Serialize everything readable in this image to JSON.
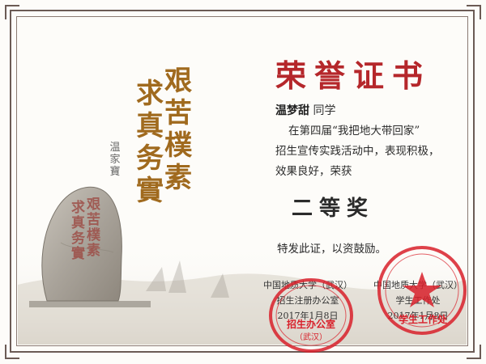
{
  "certificate": {
    "title": "荣誉证书",
    "recipient_name": "温梦甜",
    "recipient_suffix": "同学",
    "body_lines": [
      "在第四届“我把地大带回家”",
      "招生宣传实践活动中，表现积极，",
      "效果良好，荣获"
    ],
    "award": "二等奖",
    "closing": "特发此证，以资鼓励。"
  },
  "motto": {
    "column_right": "艰苦樸素",
    "column_left": "求真务實",
    "signature": "温家寶"
  },
  "stone_inscription": {
    "column_right": "艰苦樸素",
    "column_left": "求真务實"
  },
  "issuers": [
    {
      "org": "中国地质大学（武汉）",
      "dept": "招生注册办公室",
      "date": "2017年1月8日"
    },
    {
      "org": "中国地质大学（武汉）",
      "dept": "学生工作处",
      "date": "2017年1月8日"
    }
  ],
  "seals": {
    "seal1_label": "招生办公室",
    "seal1_sub": "（武汉）",
    "seal2_label": "学生工作处"
  },
  "colors": {
    "title_red": "#b5272b",
    "seal_red": "#d8202a",
    "motto_gold": "#a06a1e",
    "frame": "#6b5b55"
  }
}
